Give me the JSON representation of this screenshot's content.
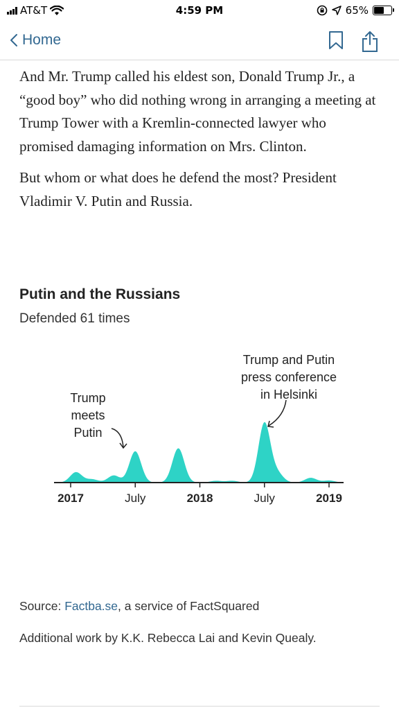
{
  "status_bar": {
    "carrier": "AT&T",
    "time": "4:59 PM",
    "battery": "65%",
    "battery_level": 0.65
  },
  "nav": {
    "back_label": "Home",
    "icons": [
      "bookmark-icon",
      "share-icon"
    ]
  },
  "article": {
    "paragraphs": [
      "And Mr. Trump called his eldest son, Donald Trump Jr., a “good boy” who did nothing wrong in arranging a meeting at Trump Tower with a Kremlin-connected lawyer who promised damaging information on Mrs. Clinton.",
      "But whom or what does he defend the most? President Vladimir V. Putin and Russia."
    ]
  },
  "chart": {
    "title": "Putin and the Russians",
    "subtitle": "Defended 61 times"
  },
  "chart_data": {
    "type": "area",
    "title": "Putin and the Russians",
    "subtitle": "Defended 61 times",
    "x_ticks": [
      {
        "label": "2017",
        "month": 0,
        "bold": true
      },
      {
        "label": "July",
        "month": 6,
        "bold": false
      },
      {
        "label": "2018",
        "month": 12,
        "bold": true
      },
      {
        "label": "July",
        "month": 18,
        "bold": false
      },
      {
        "label": "2019",
        "month": 24,
        "bold": true
      }
    ],
    "x_range_months": [
      -0.6,
      25.2
    ],
    "y_range": [
      0,
      20
    ],
    "peaks": [
      {
        "month": 0.5,
        "value": 3.5
      },
      {
        "month": 2.0,
        "value": 1.1
      },
      {
        "month": 4.0,
        "value": 2.4
      },
      {
        "month": 6.0,
        "value": 10.5
      },
      {
        "month": 10.0,
        "value": 11.5
      },
      {
        "month": 13.5,
        "value": 0.6
      },
      {
        "month": 15.0,
        "value": 0.6
      },
      {
        "month": 18.0,
        "value": 20.0
      },
      {
        "month": 19.2,
        "value": 3.0
      },
      {
        "month": 22.3,
        "value": 1.6
      },
      {
        "month": 24.0,
        "value": 0.7
      }
    ],
    "color": "#2ed3c6",
    "annotations": [
      {
        "text": [
          "Trump",
          "meets",
          "Putin"
        ],
        "month": 6
      },
      {
        "text": [
          "Trump and Putin",
          "press conference",
          "in Helsinki"
        ],
        "month": 18
      }
    ]
  },
  "footer": {
    "source_prefix": "Source: ",
    "source_link": "Factba.se",
    "source_suffix": ", a service of FactSquared",
    "credit": "Additional work by K.K. Rebecca Lai and Kevin Quealy."
  }
}
